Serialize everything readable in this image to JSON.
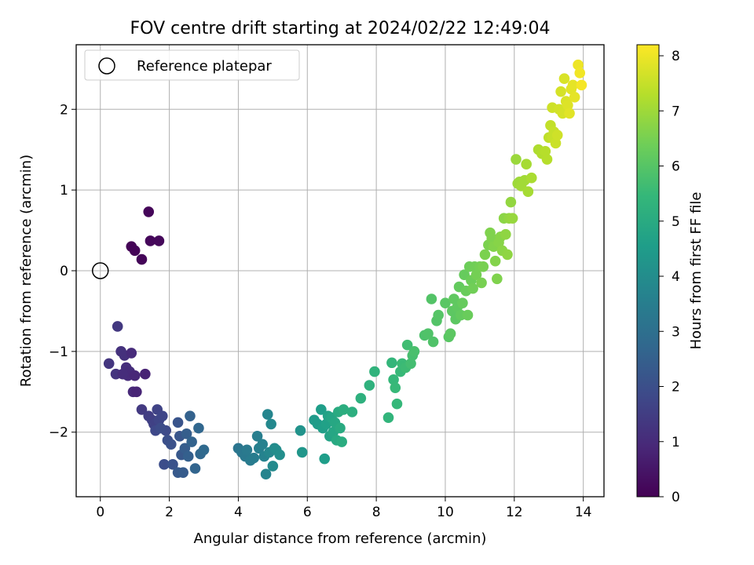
{
  "chart_data": {
    "type": "scatter",
    "title": "FOV centre drift starting at 2024/02/22 12:49:04",
    "xlabel": "Angular distance from reference (arcmin)",
    "ylabel": "Rotation from reference (arcmin)",
    "xlim": [
      -0.7,
      14.6
    ],
    "ylim": [
      -2.8,
      2.8
    ],
    "xticks": [
      0,
      2,
      4,
      6,
      8,
      10,
      12,
      14
    ],
    "yticks": [
      -2,
      -1,
      0,
      1,
      2
    ],
    "grid": true,
    "colormap": "viridis",
    "colorbar": {
      "label": "Hours from first FF file",
      "min": 0,
      "max": 8.2,
      "ticks": [
        0,
        1,
        2,
        3,
        4,
        5,
        6,
        7,
        8
      ]
    },
    "legend": {
      "placement": "top-left",
      "entries": [
        {
          "label": "Reference platepar",
          "marker": "open-circle"
        }
      ]
    },
    "reference_point": {
      "x": 0,
      "y": 0
    },
    "points": [
      [
        0.9,
        0.3,
        0.05
      ],
      [
        1.0,
        0.25,
        0.08
      ],
      [
        1.2,
        0.14,
        0.1
      ],
      [
        1.4,
        0.73,
        0.12
      ],
      [
        1.45,
        0.37,
        0.14
      ],
      [
        1.7,
        0.37,
        0.16
      ],
      [
        0.5,
        -0.69,
        1.35
      ],
      [
        0.25,
        -1.15,
        1.3
      ],
      [
        0.45,
        -1.28,
        1.25
      ],
      [
        0.6,
        -1.0,
        1.2
      ],
      [
        0.7,
        -1.05,
        1.15
      ],
      [
        0.75,
        -1.2,
        1.1
      ],
      [
        0.85,
        -1.25,
        1.05
      ],
      [
        0.9,
        -1.02,
        1.0
      ],
      [
        0.95,
        -1.5,
        0.95
      ],
      [
        0.8,
        -1.3,
        1.0
      ],
      [
        0.65,
        -1.28,
        1.05
      ],
      [
        1.0,
        -1.3,
        0.9
      ],
      [
        1.05,
        -1.5,
        0.85
      ],
      [
        1.3,
        -1.28,
        0.8
      ],
      [
        1.2,
        -1.72,
        1.4
      ],
      [
        1.4,
        -1.8,
        1.5
      ],
      [
        1.5,
        -1.85,
        1.55
      ],
      [
        1.55,
        -1.9,
        1.6
      ],
      [
        1.65,
        -1.72,
        1.65
      ],
      [
        1.7,
        -1.85,
        1.7
      ],
      [
        1.8,
        -1.8,
        1.75
      ],
      [
        1.6,
        -1.98,
        1.8
      ],
      [
        1.9,
        -1.98,
        1.85
      ],
      [
        1.75,
        -1.95,
        1.9
      ],
      [
        1.85,
        -2.4,
        1.95
      ],
      [
        1.95,
        -2.1,
        2.0
      ],
      [
        2.05,
        -2.15,
        2.05
      ],
      [
        2.1,
        -2.4,
        2.1
      ],
      [
        2.25,
        -1.88,
        2.15
      ],
      [
        2.3,
        -2.05,
        2.2
      ],
      [
        2.35,
        -2.28,
        2.25
      ],
      [
        2.25,
        -2.5,
        2.3
      ],
      [
        2.4,
        -2.5,
        2.35
      ],
      [
        2.45,
        -2.2,
        2.4
      ],
      [
        2.5,
        -2.02,
        2.45
      ],
      [
        2.55,
        -2.3,
        2.5
      ],
      [
        2.6,
        -1.8,
        2.55
      ],
      [
        2.65,
        -2.12,
        2.6
      ],
      [
        2.75,
        -2.45,
        2.65
      ],
      [
        2.85,
        -1.95,
        2.7
      ],
      [
        2.9,
        -2.27,
        2.75
      ],
      [
        3.0,
        -2.22,
        2.8
      ],
      [
        4.0,
        -2.2,
        3.2
      ],
      [
        4.1,
        -2.25,
        3.25
      ],
      [
        4.2,
        -2.3,
        3.3
      ],
      [
        4.25,
        -2.22,
        3.35
      ],
      [
        4.35,
        -2.35,
        3.4
      ],
      [
        4.45,
        -2.32,
        3.45
      ],
      [
        4.55,
        -2.05,
        3.5
      ],
      [
        4.6,
        -2.2,
        3.55
      ],
      [
        4.7,
        -2.15,
        3.6
      ],
      [
        4.75,
        -2.3,
        3.65
      ],
      [
        4.8,
        -2.52,
        3.7
      ],
      [
        4.85,
        -1.78,
        3.75
      ],
      [
        4.9,
        -2.25,
        3.8
      ],
      [
        4.95,
        -1.9,
        3.85
      ],
      [
        5.0,
        -2.42,
        3.9
      ],
      [
        5.05,
        -2.2,
        3.95
      ],
      [
        5.1,
        -2.22,
        4.0
      ],
      [
        5.2,
        -2.28,
        4.05
      ],
      [
        5.8,
        -1.98,
        4.2
      ],
      [
        5.85,
        -2.25,
        4.3
      ],
      [
        6.2,
        -1.85,
        4.45
      ],
      [
        6.3,
        -1.9,
        4.5
      ],
      [
        6.4,
        -1.72,
        4.55
      ],
      [
        6.45,
        -1.95,
        4.6
      ],
      [
        6.5,
        -2.33,
        4.55
      ],
      [
        6.55,
        -1.9,
        4.65
      ],
      [
        6.6,
        -1.8,
        4.7
      ],
      [
        6.65,
        -2.05,
        4.75
      ],
      [
        6.7,
        -1.82,
        4.8
      ],
      [
        6.75,
        -2.0,
        4.85
      ],
      [
        6.8,
        -1.88,
        4.9
      ],
      [
        6.85,
        -2.1,
        4.95
      ],
      [
        6.9,
        -1.75,
        5.0
      ],
      [
        6.95,
        -1.95,
        5.0
      ],
      [
        7.0,
        -2.12,
        5.05
      ],
      [
        7.05,
        -1.72,
        5.1
      ],
      [
        7.3,
        -1.75,
        5.15
      ],
      [
        7.55,
        -1.58,
        5.2
      ],
      [
        7.8,
        -1.42,
        5.25
      ],
      [
        7.95,
        -1.25,
        5.3
      ],
      [
        8.35,
        -1.82,
        5.35
      ],
      [
        8.45,
        -1.14,
        5.4
      ],
      [
        8.5,
        -1.35,
        5.45
      ],
      [
        8.55,
        -1.45,
        5.5
      ],
      [
        8.6,
        -1.65,
        5.45
      ],
      [
        8.7,
        -1.25,
        5.5
      ],
      [
        8.75,
        -1.15,
        5.55
      ],
      [
        8.85,
        -1.2,
        5.6
      ],
      [
        8.9,
        -0.92,
        5.65
      ],
      [
        9.0,
        -1.15,
        5.7
      ],
      [
        9.05,
        -1.05,
        5.75
      ],
      [
        9.1,
        -1.0,
        5.8
      ],
      [
        9.4,
        -0.8,
        5.85
      ],
      [
        9.5,
        -0.78,
        5.9
      ],
      [
        9.6,
        -0.35,
        5.95
      ],
      [
        9.65,
        -0.88,
        5.9
      ],
      [
        9.75,
        -0.62,
        5.95
      ],
      [
        9.8,
        -0.55,
        6.0
      ],
      [
        10.0,
        -0.4,
        6.05
      ],
      [
        10.1,
        -0.82,
        6.05
      ],
      [
        10.15,
        -0.78,
        6.1
      ],
      [
        10.2,
        -0.5,
        6.1
      ],
      [
        10.25,
        -0.35,
        6.15
      ],
      [
        10.3,
        -0.6,
        6.1
      ],
      [
        10.35,
        -0.45,
        6.15
      ],
      [
        10.4,
        -0.2,
        6.2
      ],
      [
        10.45,
        -0.55,
        6.2
      ],
      [
        10.5,
        -0.4,
        6.25
      ],
      [
        10.55,
        -0.05,
        6.25
      ],
      [
        10.6,
        -0.25,
        6.3
      ],
      [
        10.65,
        -0.55,
        6.3
      ],
      [
        10.7,
        0.05,
        6.35
      ],
      [
        10.75,
        -0.12,
        6.35
      ],
      [
        10.8,
        -0.22,
        6.4
      ],
      [
        10.85,
        0.05,
        6.4
      ],
      [
        10.9,
        -0.05,
        6.45
      ],
      [
        11.0,
        0.05,
        6.45
      ],
      [
        11.05,
        -0.15,
        6.5
      ],
      [
        11.1,
        0.05,
        6.5
      ],
      [
        11.15,
        0.2,
        6.55
      ],
      [
        11.25,
        0.32,
        6.55
      ],
      [
        11.3,
        0.47,
        6.6
      ],
      [
        11.35,
        0.4,
        6.6
      ],
      [
        11.4,
        0.3,
        6.65
      ],
      [
        11.45,
        0.12,
        6.65
      ],
      [
        11.5,
        -0.1,
        6.6
      ],
      [
        11.55,
        0.35,
        6.7
      ],
      [
        11.6,
        0.42,
        6.7
      ],
      [
        11.65,
        0.25,
        6.75
      ],
      [
        11.7,
        0.65,
        6.75
      ],
      [
        11.75,
        0.45,
        6.8
      ],
      [
        11.8,
        0.2,
        6.8
      ],
      [
        11.85,
        0.65,
        6.85
      ],
      [
        11.9,
        0.85,
        6.85
      ],
      [
        11.95,
        0.65,
        6.9
      ],
      [
        12.05,
        1.38,
        6.95
      ],
      [
        12.1,
        1.08,
        7.0
      ],
      [
        12.15,
        1.1,
        7.0
      ],
      [
        12.2,
        1.05,
        7.05
      ],
      [
        12.3,
        1.12,
        7.05
      ],
      [
        12.35,
        1.32,
        7.1
      ],
      [
        12.4,
        0.98,
        7.1
      ],
      [
        12.5,
        1.15,
        7.15
      ],
      [
        12.7,
        1.5,
        7.2
      ],
      [
        12.8,
        1.45,
        7.25
      ],
      [
        12.9,
        1.48,
        7.3
      ],
      [
        12.95,
        1.38,
        7.3
      ],
      [
        13.0,
        1.65,
        7.4
      ],
      [
        13.05,
        1.8,
        7.45
      ],
      [
        13.1,
        1.65,
        7.5
      ],
      [
        13.15,
        1.72,
        7.5
      ],
      [
        13.2,
        1.58,
        7.55
      ],
      [
        13.25,
        1.68,
        7.6
      ],
      [
        13.1,
        2.02,
        7.6
      ],
      [
        13.3,
        2.0,
        7.65
      ],
      [
        13.35,
        2.22,
        7.7
      ],
      [
        13.4,
        1.95,
        7.7
      ],
      [
        13.45,
        2.38,
        7.75
      ],
      [
        13.5,
        2.1,
        7.75
      ],
      [
        13.55,
        2.05,
        7.8
      ],
      [
        13.6,
        1.95,
        7.85
      ],
      [
        13.65,
        2.25,
        7.85
      ],
      [
        13.7,
        2.3,
        7.9
      ],
      [
        13.75,
        2.15,
        7.9
      ],
      [
        13.85,
        2.55,
        8.0
      ],
      [
        13.9,
        2.45,
        8.05
      ],
      [
        13.95,
        2.3,
        8.1
      ]
    ]
  }
}
